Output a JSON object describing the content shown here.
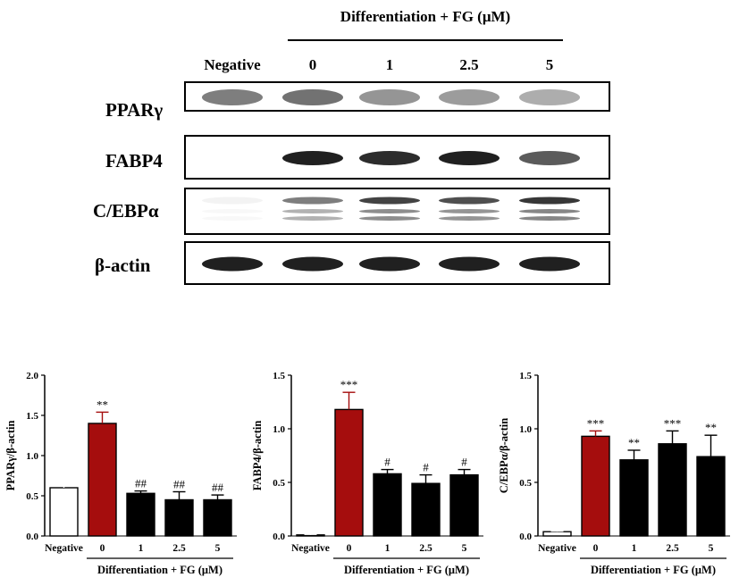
{
  "blot": {
    "header": "Differentiation + FG (μM)",
    "lanes": [
      "Negative",
      "0",
      "1",
      "2.5",
      "5"
    ],
    "rows": [
      {
        "label": "PPARγ",
        "bands": [
          0.55,
          0.6,
          0.45,
          0.42,
          0.35
        ]
      },
      {
        "label": "FABP4",
        "bands": [
          0.0,
          0.95,
          0.9,
          0.95,
          0.7
        ]
      },
      {
        "label": "C/EBPα",
        "bands": [
          0.05,
          0.55,
          0.8,
          0.75,
          0.85
        ]
      },
      {
        "label": "β-actin",
        "bands": [
          0.95,
          0.95,
          0.95,
          0.95,
          0.95
        ]
      }
    ]
  },
  "colors": {
    "negative": "#ffffff",
    "control": "#a50d0d",
    "treated": "#000000"
  },
  "chart_data": [
    {
      "type": "bar",
      "categories": [
        "Negative",
        "0",
        "1",
        "2.5",
        "5"
      ],
      "values": [
        0.6,
        1.4,
        0.53,
        0.45,
        0.45
      ],
      "errors": [
        0.02,
        0.14,
        0.03,
        0.1,
        0.06
      ],
      "significance": [
        "",
        "**",
        "##",
        "##",
        "##"
      ],
      "xlabel": "Differentiation + FG (μM)",
      "ylabel": "PPARγ/β-actin",
      "ylim": [
        0,
        2.0
      ],
      "yticks": [
        "0.0",
        "0.5",
        "1.0",
        "1.5",
        "2.0"
      ],
      "ytick_values": [
        0,
        0.5,
        1.0,
        1.5,
        2.0
      ]
    },
    {
      "type": "bar",
      "categories": [
        "Negative",
        "0",
        "1",
        "2.5",
        "5"
      ],
      "values": [
        0.01,
        1.18,
        0.58,
        0.49,
        0.57
      ],
      "errors": [
        0.005,
        0.16,
        0.04,
        0.08,
        0.05
      ],
      "significance": [
        "",
        "***",
        "#",
        "#",
        "#"
      ],
      "xlabel": "Differentiation + FG (μM)",
      "ylabel": "FABP4/β-actin",
      "ylim": [
        0,
        1.5
      ],
      "yticks": [
        "0.0",
        "0.5",
        "1.0",
        "1.5"
      ],
      "ytick_values": [
        0,
        0.5,
        1.0,
        1.5
      ]
    },
    {
      "type": "bar",
      "categories": [
        "Negative",
        "0",
        "1",
        "2.5",
        "5"
      ],
      "values": [
        0.04,
        0.93,
        0.71,
        0.86,
        0.74
      ],
      "errors": [
        0.005,
        0.05,
        0.09,
        0.12,
        0.2
      ],
      "significance": [
        "",
        "***",
        "**",
        "***",
        "**"
      ],
      "xlabel": "Differentiation + FG (μM)",
      "ylabel": "C/EBPα/β-actin",
      "ylim": [
        0,
        1.5
      ],
      "yticks": [
        "0.0",
        "0.5",
        "1.0",
        "1.5"
      ],
      "ytick_values": [
        0,
        0.5,
        1.0,
        1.5
      ]
    }
  ]
}
